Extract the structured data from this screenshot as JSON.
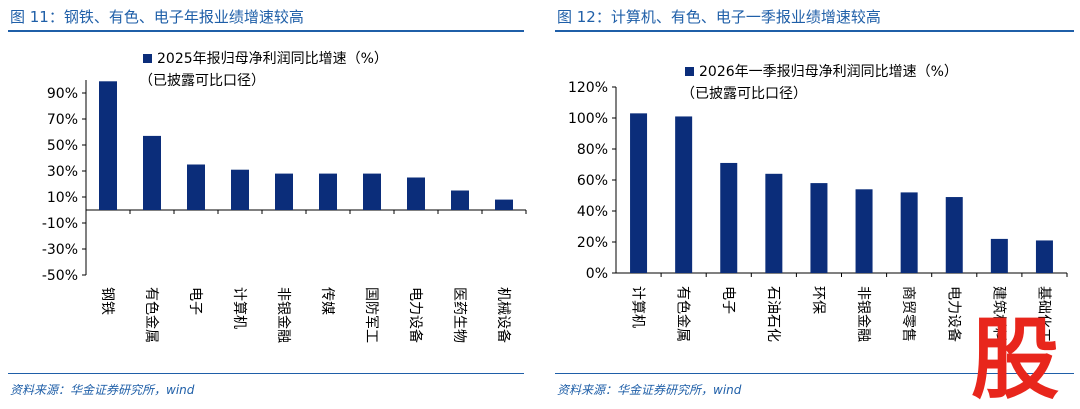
{
  "colors": {
    "bar": "#0b2d7a",
    "axis": "#000000",
    "header": "#1f5fa8",
    "watermark": "#e8261c"
  },
  "watermark": {
    "text": "股"
  },
  "chart_data": [
    {
      "type": "bar",
      "figure_title": "图 11：钢铁、有色、电子年报业绩增速较高",
      "source": "资料来源：华金证券研究所，wind",
      "legend": {
        "label": "2025年报归母净利润同比增速（%）",
        "note": "（已披露可比口径）",
        "position": "top-left"
      },
      "categories": [
        "钢铁",
        "有色金属",
        "电子",
        "计算机",
        "非银金融",
        "传媒",
        "国防军工",
        "电力设备",
        "医药生物",
        "机械设备"
      ],
      "values": [
        99,
        57,
        35,
        31,
        28,
        28,
        28,
        25,
        15,
        8
      ],
      "ylim": [
        -50,
        100
      ],
      "yticks": [
        -50,
        -30,
        -10,
        10,
        30,
        50,
        70,
        90
      ],
      "ytick_labels": [
        "-50%",
        "-30%",
        "-10%",
        "10%",
        "30%",
        "50%",
        "70%",
        "90%"
      ],
      "xlabel": "",
      "ylabel": "",
      "grid": false
    },
    {
      "type": "bar",
      "figure_title": "图 12：计算机、有色、电子一季报业绩增速较高",
      "source": "资料来源：华金证券研究所，wind",
      "legend": {
        "label": "2026年一季报归母净利润同比增速（%）",
        "note": "（已披露可比口径）",
        "position": "top-left"
      },
      "categories": [
        "计算机",
        "有色金属",
        "电子",
        "石油石化",
        "环保",
        "非银金融",
        "商贸零售",
        "电力设备",
        "建筑材料",
        "基础化工"
      ],
      "values": [
        103,
        101,
        71,
        64,
        58,
        54,
        52,
        49,
        22,
        21
      ],
      "ylim": [
        0,
        120
      ],
      "yticks": [
        0,
        20,
        40,
        60,
        80,
        100,
        120
      ],
      "ytick_labels": [
        "0%",
        "20%",
        "40%",
        "60%",
        "80%",
        "100%",
        "120%"
      ],
      "xlabel": "",
      "ylabel": "",
      "grid": false
    }
  ]
}
